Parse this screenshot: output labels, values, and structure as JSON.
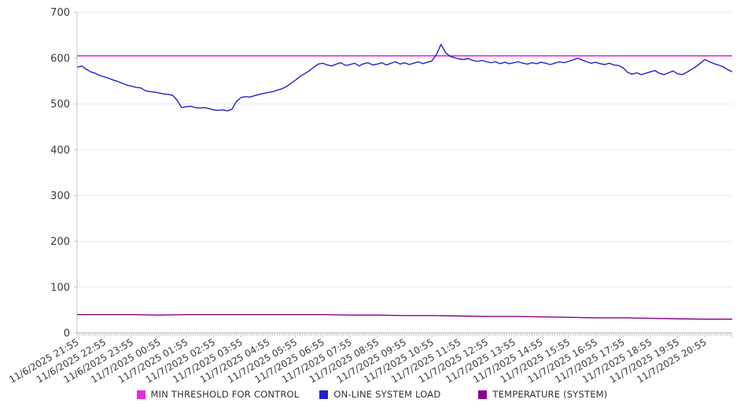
{
  "chart_data": {
    "type": "line",
    "title": "",
    "xlabel": "",
    "ylabel": "",
    "grid": "horizontal",
    "legend_position": "bottom",
    "y_axis": {
      "min": 0,
      "max": 700,
      "tick_step": 100,
      "tick_labels": [
        "0",
        "100",
        "200",
        "300",
        "400",
        "500",
        "600",
        "700"
      ]
    },
    "x_axis": {
      "minor_tick_interval_minutes": 5,
      "label_rotation_deg": -30,
      "tick_labels": [
        "11/6/2025 21:55",
        "11/6/2025 22:55",
        "11/6/2025 23:55",
        "11/7/2025 00:55",
        "11/7/2025 01:55",
        "11/7/2025 02:55",
        "11/7/2025 03:55",
        "11/7/2025 04:55",
        "11/7/2025 05:55",
        "11/7/2025 06:55",
        "11/7/2025 07:55",
        "11/7/2025 08:55",
        "11/7/2025 09:55",
        "11/7/2025 10:55",
        "11/7/2025 11:55",
        "11/7/2025 12:55",
        "11/7/2025 13:55",
        "11/7/2025 14:55",
        "11/7/2025 15:55",
        "11/7/2025 16:55",
        "11/7/2025 17:55",
        "11/7/2025 18:55",
        "11/7/2025 19:55",
        "11/7/2025 20:55"
      ],
      "plotted_hours_total": 24
    },
    "series": [
      {
        "name": "MIN THRESHOLD FOR CONTROL",
        "color": "#E22AD7",
        "kind": "constant",
        "value": 605
      },
      {
        "name": "ON-LINE SYSTEM LOAD",
        "color": "#2222CC",
        "kind": "line",
        "sample_interval_minutes": 10,
        "values": [
          580,
          583,
          576,
          570,
          567,
          562,
          559,
          556,
          552,
          549,
          545,
          541,
          539,
          536,
          535,
          529,
          527,
          526,
          524,
          522,
          521,
          519,
          508,
          492,
          494,
          495,
          492,
          491,
          492,
          490,
          487,
          486,
          487,
          485,
          488,
          505,
          514,
          516,
          515,
          518,
          521,
          523,
          525,
          527,
          530,
          533,
          538,
          545,
          552,
          560,
          566,
          572,
          580,
          587,
          589,
          585,
          583,
          587,
          590,
          584,
          586,
          589,
          583,
          588,
          590,
          585,
          587,
          590,
          585,
          589,
          592,
          587,
          590,
          586,
          589,
          592,
          588,
          591,
          594,
          608,
          630,
          612,
          604,
          601,
          598,
          597,
          599,
          595,
          593,
          595,
          592,
          590,
          592,
          588,
          591,
          588,
          590,
          592,
          589,
          587,
          590,
          588,
          591,
          589,
          586,
          589,
          592,
          590,
          593,
          596,
          600,
          596,
          592,
          589,
          591,
          588,
          586,
          589,
          585,
          584,
          579,
          569,
          565,
          568,
          564,
          567,
          570,
          573,
          567,
          564,
          568,
          572,
          566,
          564,
          569,
          575,
          581,
          589,
          597,
          592,
          588,
          585,
          581,
          575,
          570
        ]
      },
      {
        "name": "TEMPERATURE (SYSTEM)",
        "color": "#8B008B",
        "kind": "line",
        "sample_interval_minutes": 60,
        "values": [
          40,
          40,
          40,
          39,
          40,
          40,
          40,
          40,
          40,
          40,
          39,
          39,
          38,
          38,
          37,
          36,
          36,
          35,
          34,
          33,
          33,
          32,
          31,
          30,
          30
        ]
      }
    ],
    "style": {
      "grid_color": "#EAEAEA",
      "axis_color": "#A8A8A8",
      "y_axis_line_color": "#C4C4C4",
      "minor_tick_color": "#C9C9C9",
      "tick_label_color": "#3C3C3C"
    }
  },
  "legend": {
    "items": [
      {
        "label": "MIN THRESHOLD FOR CONTROL"
      },
      {
        "label": "ON-LINE SYSTEM LOAD"
      },
      {
        "label": "TEMPERATURE (SYSTEM)"
      }
    ]
  }
}
